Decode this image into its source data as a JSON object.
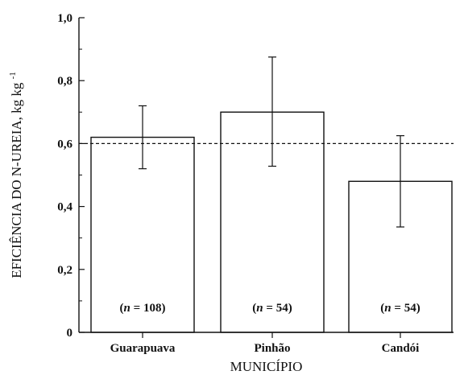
{
  "chart_data": {
    "type": "bar",
    "categories": [
      "Guarapuava",
      "Pinhão",
      "Candói"
    ],
    "values": [
      0.62,
      0.7,
      0.48
    ],
    "error_high": [
      0.72,
      0.875,
      0.625
    ],
    "error_low": [
      0.52,
      0.528,
      0.335
    ],
    "reference_line": 0.6,
    "sample_labels": [
      {
        "prefix": "(",
        "n": "n",
        "suffix": " = 108)"
      },
      {
        "prefix": "(",
        "n": "n",
        "suffix": " = 54)"
      },
      {
        "prefix": "(",
        "n": "n",
        "suffix": " = 54)"
      }
    ],
    "xlabel": "MUNICÍPIO",
    "ylabel_main": "EFICIÊNCIA DO N-UREIA, kg kg",
    "ylabel_sup": "-1",
    "ylim": [
      0,
      1.0
    ],
    "yticks": [
      0,
      0.2,
      0.4,
      0.6,
      0.8,
      1.0
    ],
    "ytick_labels": [
      "0",
      "0,2",
      "0,4",
      "0,6",
      "0,8",
      "1,0"
    ],
    "colors": {
      "bar_fill": "#ffffff",
      "bar_stroke": "#111111",
      "axis": "#111111",
      "reference_line": "#111111"
    }
  }
}
